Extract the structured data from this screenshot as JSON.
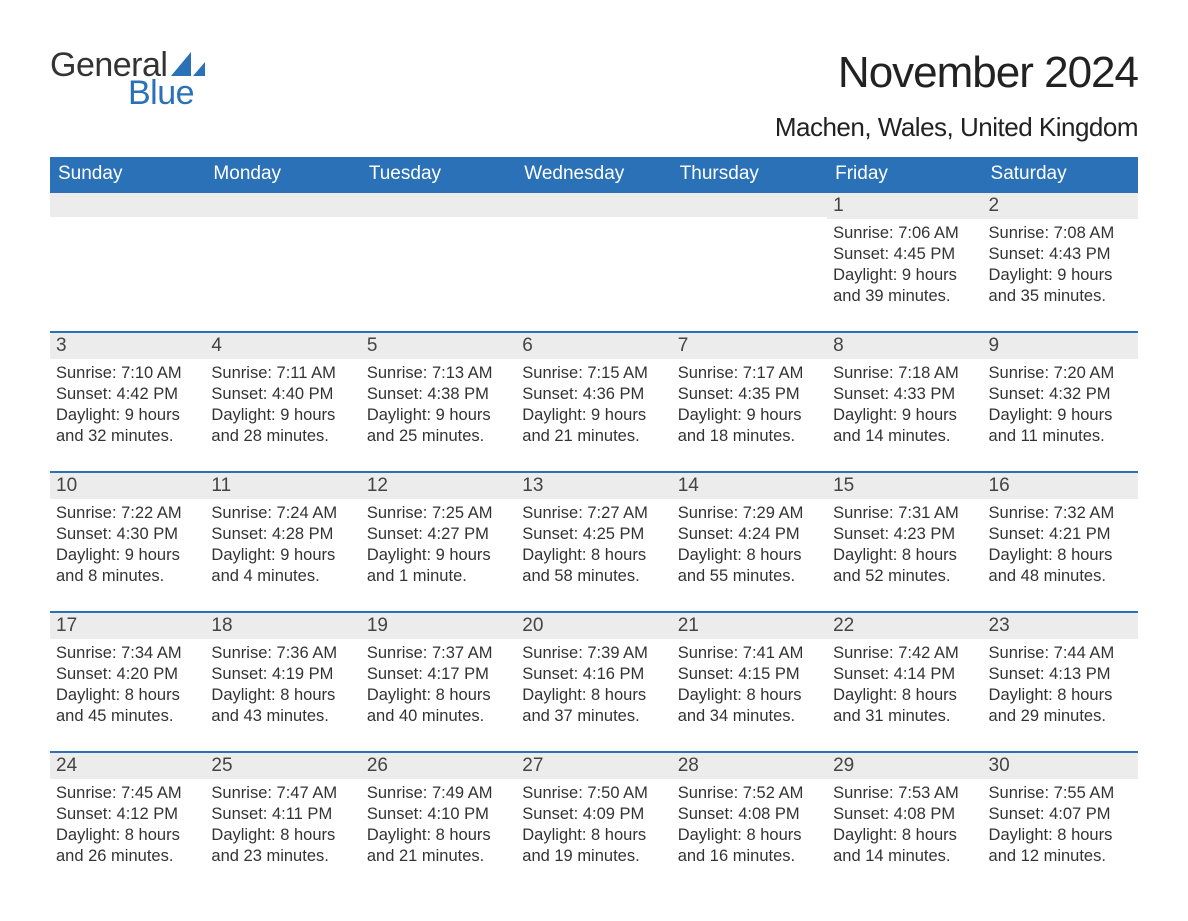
{
  "logo": {
    "word1": "General",
    "word2": "Blue",
    "sail_color": "#2a71b8",
    "text_dark": "#333333"
  },
  "title": "November 2024",
  "location": "Machen, Wales, United Kingdom",
  "colors": {
    "header_bg": "#2a71b8",
    "header_text": "#ffffff",
    "daynum_bg": "#ececec",
    "border_top": "#2a71b8",
    "body_text": "#333333",
    "page_bg": "#ffffff"
  },
  "weekdays": [
    "Sunday",
    "Monday",
    "Tuesday",
    "Wednesday",
    "Thursday",
    "Friday",
    "Saturday"
  ],
  "grid": [
    [
      null,
      null,
      null,
      null,
      null,
      {
        "n": "1",
        "sunrise": "Sunrise: 7:06 AM",
        "sunset": "Sunset: 4:45 PM",
        "d1": "Daylight: 9 hours",
        "d2": "and 39 minutes."
      },
      {
        "n": "2",
        "sunrise": "Sunrise: 7:08 AM",
        "sunset": "Sunset: 4:43 PM",
        "d1": "Daylight: 9 hours",
        "d2": "and 35 minutes."
      }
    ],
    [
      {
        "n": "3",
        "sunrise": "Sunrise: 7:10 AM",
        "sunset": "Sunset: 4:42 PM",
        "d1": "Daylight: 9 hours",
        "d2": "and 32 minutes."
      },
      {
        "n": "4",
        "sunrise": "Sunrise: 7:11 AM",
        "sunset": "Sunset: 4:40 PM",
        "d1": "Daylight: 9 hours",
        "d2": "and 28 minutes."
      },
      {
        "n": "5",
        "sunrise": "Sunrise: 7:13 AM",
        "sunset": "Sunset: 4:38 PM",
        "d1": "Daylight: 9 hours",
        "d2": "and 25 minutes."
      },
      {
        "n": "6",
        "sunrise": "Sunrise: 7:15 AM",
        "sunset": "Sunset: 4:36 PM",
        "d1": "Daylight: 9 hours",
        "d2": "and 21 minutes."
      },
      {
        "n": "7",
        "sunrise": "Sunrise: 7:17 AM",
        "sunset": "Sunset: 4:35 PM",
        "d1": "Daylight: 9 hours",
        "d2": "and 18 minutes."
      },
      {
        "n": "8",
        "sunrise": "Sunrise: 7:18 AM",
        "sunset": "Sunset: 4:33 PM",
        "d1": "Daylight: 9 hours",
        "d2": "and 14 minutes."
      },
      {
        "n": "9",
        "sunrise": "Sunrise: 7:20 AM",
        "sunset": "Sunset: 4:32 PM",
        "d1": "Daylight: 9 hours",
        "d2": "and 11 minutes."
      }
    ],
    [
      {
        "n": "10",
        "sunrise": "Sunrise: 7:22 AM",
        "sunset": "Sunset: 4:30 PM",
        "d1": "Daylight: 9 hours",
        "d2": "and 8 minutes."
      },
      {
        "n": "11",
        "sunrise": "Sunrise: 7:24 AM",
        "sunset": "Sunset: 4:28 PM",
        "d1": "Daylight: 9 hours",
        "d2": "and 4 minutes."
      },
      {
        "n": "12",
        "sunrise": "Sunrise: 7:25 AM",
        "sunset": "Sunset: 4:27 PM",
        "d1": "Daylight: 9 hours",
        "d2": "and 1 minute."
      },
      {
        "n": "13",
        "sunrise": "Sunrise: 7:27 AM",
        "sunset": "Sunset: 4:25 PM",
        "d1": "Daylight: 8 hours",
        "d2": "and 58 minutes."
      },
      {
        "n": "14",
        "sunrise": "Sunrise: 7:29 AM",
        "sunset": "Sunset: 4:24 PM",
        "d1": "Daylight: 8 hours",
        "d2": "and 55 minutes."
      },
      {
        "n": "15",
        "sunrise": "Sunrise: 7:31 AM",
        "sunset": "Sunset: 4:23 PM",
        "d1": "Daylight: 8 hours",
        "d2": "and 52 minutes."
      },
      {
        "n": "16",
        "sunrise": "Sunrise: 7:32 AM",
        "sunset": "Sunset: 4:21 PM",
        "d1": "Daylight: 8 hours",
        "d2": "and 48 minutes."
      }
    ],
    [
      {
        "n": "17",
        "sunrise": "Sunrise: 7:34 AM",
        "sunset": "Sunset: 4:20 PM",
        "d1": "Daylight: 8 hours",
        "d2": "and 45 minutes."
      },
      {
        "n": "18",
        "sunrise": "Sunrise: 7:36 AM",
        "sunset": "Sunset: 4:19 PM",
        "d1": "Daylight: 8 hours",
        "d2": "and 43 minutes."
      },
      {
        "n": "19",
        "sunrise": "Sunrise: 7:37 AM",
        "sunset": "Sunset: 4:17 PM",
        "d1": "Daylight: 8 hours",
        "d2": "and 40 minutes."
      },
      {
        "n": "20",
        "sunrise": "Sunrise: 7:39 AM",
        "sunset": "Sunset: 4:16 PM",
        "d1": "Daylight: 8 hours",
        "d2": "and 37 minutes."
      },
      {
        "n": "21",
        "sunrise": "Sunrise: 7:41 AM",
        "sunset": "Sunset: 4:15 PM",
        "d1": "Daylight: 8 hours",
        "d2": "and 34 minutes."
      },
      {
        "n": "22",
        "sunrise": "Sunrise: 7:42 AM",
        "sunset": "Sunset: 4:14 PM",
        "d1": "Daylight: 8 hours",
        "d2": "and 31 minutes."
      },
      {
        "n": "23",
        "sunrise": "Sunrise: 7:44 AM",
        "sunset": "Sunset: 4:13 PM",
        "d1": "Daylight: 8 hours",
        "d2": "and 29 minutes."
      }
    ],
    [
      {
        "n": "24",
        "sunrise": "Sunrise: 7:45 AM",
        "sunset": "Sunset: 4:12 PM",
        "d1": "Daylight: 8 hours",
        "d2": "and 26 minutes."
      },
      {
        "n": "25",
        "sunrise": "Sunrise: 7:47 AM",
        "sunset": "Sunset: 4:11 PM",
        "d1": "Daylight: 8 hours",
        "d2": "and 23 minutes."
      },
      {
        "n": "26",
        "sunrise": "Sunrise: 7:49 AM",
        "sunset": "Sunset: 4:10 PM",
        "d1": "Daylight: 8 hours",
        "d2": "and 21 minutes."
      },
      {
        "n": "27",
        "sunrise": "Sunrise: 7:50 AM",
        "sunset": "Sunset: 4:09 PM",
        "d1": "Daylight: 8 hours",
        "d2": "and 19 minutes."
      },
      {
        "n": "28",
        "sunrise": "Sunrise: 7:52 AM",
        "sunset": "Sunset: 4:08 PM",
        "d1": "Daylight: 8 hours",
        "d2": "and 16 minutes."
      },
      {
        "n": "29",
        "sunrise": "Sunrise: 7:53 AM",
        "sunset": "Sunset: 4:08 PM",
        "d1": "Daylight: 8 hours",
        "d2": "and 14 minutes."
      },
      {
        "n": "30",
        "sunrise": "Sunrise: 7:55 AM",
        "sunset": "Sunset: 4:07 PM",
        "d1": "Daylight: 8 hours",
        "d2": "and 12 minutes."
      }
    ]
  ]
}
